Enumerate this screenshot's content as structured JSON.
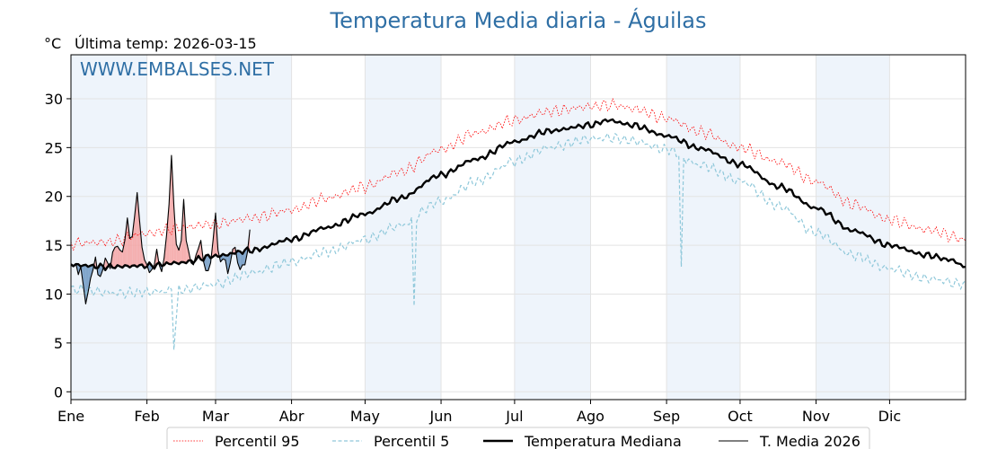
{
  "title": "Temperatura Media diaria - Águilas",
  "unit_label": "°C",
  "last_temp_label": "Última temp: 2026-03-15",
  "watermark": "WWW.EMBALSES.NET",
  "colors": {
    "p95": "#ff0000",
    "p5": "#8fc8da",
    "median": "#000000",
    "current": "#000000",
    "above_fill": "#f4a3a3",
    "below_fill": "#5b8bbb",
    "month_band": "#eef4fb",
    "title": "#2f6fa5"
  },
  "chart_data": {
    "type": "line",
    "title": "Temperatura Media diaria - Águilas",
    "ylabel": "°C",
    "ylim": [
      -0.8,
      34.5
    ],
    "xlim": [
      1,
      366
    ],
    "yticks": [
      0,
      5,
      10,
      15,
      20,
      25,
      30
    ],
    "month_ticks": [
      {
        "label": "Ene",
        "day": 1
      },
      {
        "label": "Feb",
        "day": 32
      },
      {
        "label": "Mar",
        "day": 60
      },
      {
        "label": "Abr",
        "day": 91
      },
      {
        "label": "May",
        "day": 121
      },
      {
        "label": "Jun",
        "day": 152
      },
      {
        "label": "Jul",
        "day": 182
      },
      {
        "label": "Ago",
        "day": 213
      },
      {
        "label": "Sep",
        "day": 244
      },
      {
        "label": "Oct",
        "day": 274
      },
      {
        "label": "Nov",
        "day": 305
      },
      {
        "label": "Dic",
        "day": 335
      }
    ],
    "shaded_months": [
      [
        1,
        32
      ],
      [
        60,
        91
      ],
      [
        121,
        152
      ],
      [
        182,
        213
      ],
      [
        244,
        274
      ],
      [
        305,
        335
      ]
    ],
    "legend": [
      "Percentil 95",
      "Percentil 5",
      "Temperatura Mediana",
      "T. Media 2026"
    ],
    "legend_position": "bottom-center",
    "grid": true,
    "series": [
      {
        "name": "Percentil 95",
        "style": "dotted",
        "knots": [
          [
            1,
            15.2
          ],
          [
            15,
            15.3
          ],
          [
            32,
            16.2
          ],
          [
            45,
            16.8
          ],
          [
            60,
            17.2
          ],
          [
            75,
            17.8
          ],
          [
            91,
            18.6
          ],
          [
            105,
            19.8
          ],
          [
            121,
            21.0
          ],
          [
            135,
            22.5
          ],
          [
            152,
            24.8
          ],
          [
            166,
            26.5
          ],
          [
            182,
            27.8
          ],
          [
            196,
            28.7
          ],
          [
            213,
            29.2
          ],
          [
            222,
            29.4
          ],
          [
            230,
            29.0
          ],
          [
            244,
            28.0
          ],
          [
            258,
            26.6
          ],
          [
            274,
            25.0
          ],
          [
            290,
            23.5
          ],
          [
            305,
            21.5
          ],
          [
            320,
            19.2
          ],
          [
            335,
            17.6
          ],
          [
            350,
            16.6
          ],
          [
            366,
            15.6
          ]
        ],
        "noise": 0.75,
        "spikes": []
      },
      {
        "name": "Percentil 5",
        "style": "dashed",
        "knots": [
          [
            1,
            10.5
          ],
          [
            20,
            10.1
          ],
          [
            32,
            10.2
          ],
          [
            45,
            10.4
          ],
          [
            60,
            11.0
          ],
          [
            75,
            12.2
          ],
          [
            91,
            13.3
          ],
          [
            105,
            14.3
          ],
          [
            121,
            15.6
          ],
          [
            135,
            17.0
          ],
          [
            152,
            19.5
          ],
          [
            166,
            21.5
          ],
          [
            182,
            23.6
          ],
          [
            196,
            25.0
          ],
          [
            213,
            25.9
          ],
          [
            222,
            26.0
          ],
          [
            230,
            25.7
          ],
          [
            244,
            24.8
          ],
          [
            258,
            23.2
          ],
          [
            274,
            21.6
          ],
          [
            290,
            19.0
          ],
          [
            305,
            16.3
          ],
          [
            320,
            14.0
          ],
          [
            335,
            12.6
          ],
          [
            350,
            11.6
          ],
          [
            366,
            11.0
          ]
        ],
        "noise": 0.7,
        "spikes": [
          [
            43,
            4.3
          ],
          [
            44,
            7.5
          ],
          [
            141,
            8.8
          ],
          [
            250,
            12.8
          ]
        ]
      },
      {
        "name": "Temperatura Mediana",
        "style": "solid-thick",
        "knots": [
          [
            1,
            13.0
          ],
          [
            15,
            12.8
          ],
          [
            32,
            12.9
          ],
          [
            45,
            13.2
          ],
          [
            60,
            13.9
          ],
          [
            75,
            14.5
          ],
          [
            91,
            15.6
          ],
          [
            105,
            16.8
          ],
          [
            121,
            18.2
          ],
          [
            135,
            19.8
          ],
          [
            152,
            22.2
          ],
          [
            166,
            23.8
          ],
          [
            182,
            25.6
          ],
          [
            196,
            26.7
          ],
          [
            213,
            27.3
          ],
          [
            220,
            27.8
          ],
          [
            230,
            27.3
          ],
          [
            244,
            26.2
          ],
          [
            258,
            24.9
          ],
          [
            274,
            23.3
          ],
          [
            290,
            21.0
          ],
          [
            305,
            18.8
          ],
          [
            320,
            16.5
          ],
          [
            335,
            15.0
          ],
          [
            350,
            14.0
          ],
          [
            360,
            13.5
          ],
          [
            366,
            12.8
          ]
        ],
        "noise": 0.35,
        "spikes": []
      },
      {
        "name": "T. Media 2026",
        "style": "solid-thin",
        "points": [
          [
            1,
            13.0
          ],
          [
            2,
            12.8
          ],
          [
            3,
            13.1
          ],
          [
            4,
            12.0
          ],
          [
            5,
            12.8
          ],
          [
            6,
            11.0
          ],
          [
            7,
            9.0
          ],
          [
            8,
            10.2
          ],
          [
            9,
            11.6
          ],
          [
            10,
            12.5
          ],
          [
            11,
            13.8
          ],
          [
            12,
            12.0
          ],
          [
            13,
            11.8
          ],
          [
            14,
            12.5
          ],
          [
            15,
            13.7
          ],
          [
            16,
            13.2
          ],
          [
            17,
            12.6
          ],
          [
            18,
            14.3
          ],
          [
            19,
            14.8
          ],
          [
            20,
            14.9
          ],
          [
            21,
            14.5
          ],
          [
            22,
            14.3
          ],
          [
            23,
            15.5
          ],
          [
            24,
            17.8
          ],
          [
            25,
            15.7
          ],
          [
            26,
            15.9
          ],
          [
            27,
            18.0
          ],
          [
            28,
            20.4
          ],
          [
            29,
            17.5
          ],
          [
            30,
            14.8
          ],
          [
            31,
            13.5
          ],
          [
            32,
            13.0
          ],
          [
            33,
            12.2
          ],
          [
            34,
            12.5
          ],
          [
            35,
            13.0
          ],
          [
            36,
            14.6
          ],
          [
            37,
            13.0
          ],
          [
            38,
            12.3
          ],
          [
            39,
            13.7
          ],
          [
            40,
            16.0
          ],
          [
            41,
            19.2
          ],
          [
            42,
            24.2
          ],
          [
            43,
            19.0
          ],
          [
            44,
            15.1
          ],
          [
            45,
            14.5
          ],
          [
            46,
            15.5
          ],
          [
            47,
            19.7
          ],
          [
            48,
            15.5
          ],
          [
            49,
            14.4
          ],
          [
            50,
            13.2
          ],
          [
            51,
            13.0
          ],
          [
            52,
            14.0
          ],
          [
            53,
            14.7
          ],
          [
            54,
            15.5
          ],
          [
            55,
            13.4
          ],
          [
            56,
            12.4
          ],
          [
            57,
            12.4
          ],
          [
            58,
            13.2
          ],
          [
            59,
            15.6
          ],
          [
            60,
            18.3
          ],
          [
            61,
            14.5
          ],
          [
            62,
            13.3
          ],
          [
            63,
            13.6
          ],
          [
            64,
            13.5
          ],
          [
            65,
            12.1
          ],
          [
            66,
            13.2
          ],
          [
            67,
            14.6
          ],
          [
            68,
            14.8
          ],
          [
            69,
            13.2
          ],
          [
            70,
            12.5
          ],
          [
            71,
            13.0
          ],
          [
            72,
            13.0
          ],
          [
            73,
            14.3
          ],
          [
            74,
            16.6
          ]
        ]
      }
    ]
  }
}
